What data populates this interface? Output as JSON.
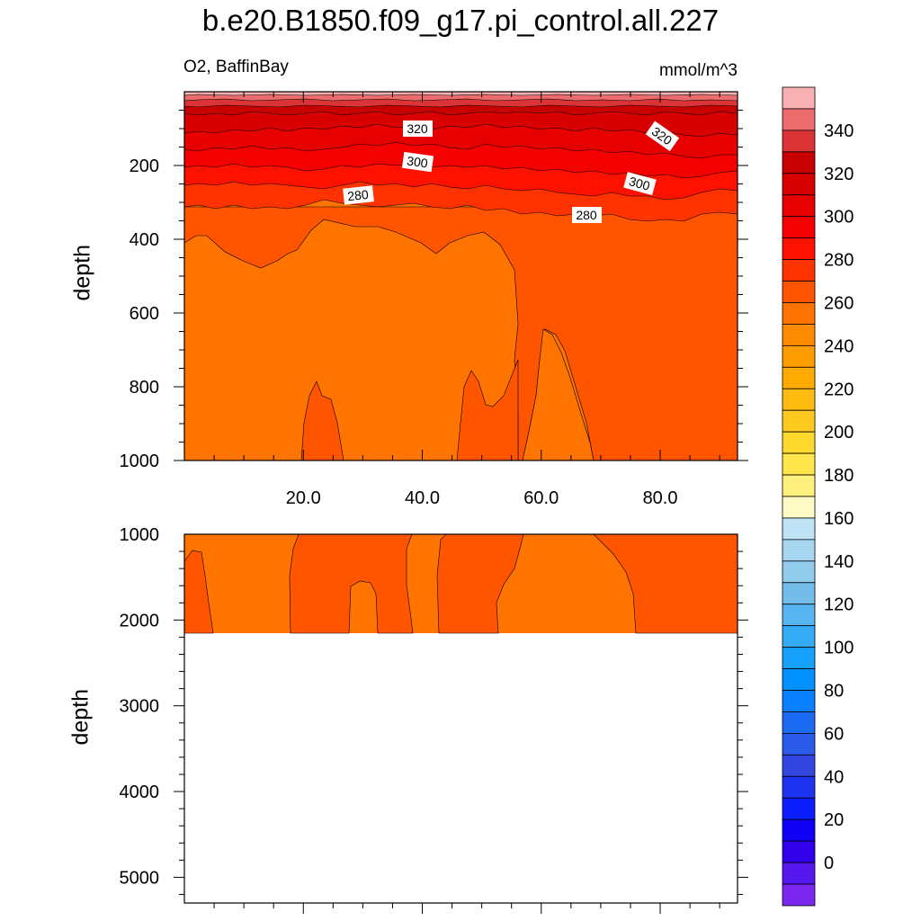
{
  "title": "b.e20.B1850.f09_g17.pi_control.all.227",
  "left_string": "O2, BaffinBay",
  "right_string": "mmol/m^3",
  "chart_data": [
    {
      "type": "contour",
      "panel": "upper",
      "ylabel": "depth",
      "y_reversed": true,
      "xlim": [
        0,
        93
      ],
      "ylim": [
        1000,
        0
      ],
      "x_ticks": [
        "20.0",
        "40.0",
        "60.0",
        "80.0"
      ],
      "y_ticks": [
        "200",
        "400",
        "600",
        "800",
        "1000"
      ],
      "contour_labels": [
        "320",
        "320",
        "300",
        "300",
        "280",
        "280"
      ],
      "approx_fields": [
        {
          "depth_range": [
            0,
            60
          ],
          "value_range": [
            330,
            360
          ]
        },
        {
          "depth_range": [
            60,
            230
          ],
          "value_range": [
            290,
            330
          ]
        },
        {
          "depth_range": [
            230,
            400
          ],
          "value_range": [
            270,
            290
          ]
        },
        {
          "depth_range": [
            400,
            1000
          ],
          "value_range": [
            260,
            280
          ]
        }
      ]
    },
    {
      "type": "contour",
      "panel": "lower",
      "ylabel": "depth",
      "y_reversed": true,
      "ylim": [
        5300,
        1000
      ],
      "y_ticks": [
        "1000",
        "2000",
        "3000",
        "4000",
        "5000"
      ],
      "data_depth_max": 2200,
      "approx_fields": [
        {
          "depth_range": [
            1000,
            2200
          ],
          "value_range": [
            260,
            280
          ]
        }
      ]
    }
  ],
  "colorbar": {
    "labels": [
      "340",
      "320",
      "300",
      "280",
      "260",
      "240",
      "220",
      "200",
      "180",
      "160",
      "140",
      "120",
      "100",
      "80",
      "60",
      "40",
      "20",
      "0"
    ],
    "colors": [
      "#F8B2B4",
      "#EC6C6E",
      "#DB3437",
      "#C90000",
      "#D80000",
      "#E60000",
      "#F50000",
      "#FF1100",
      "#FF3300",
      "#FF5500",
      "#FF7400",
      "#FF8C00",
      "#FF9C00",
      "#FFAA00",
      "#FFBB10",
      "#FFCA20",
      "#FFD92E",
      "#FFE64A",
      "#FFF07F",
      "#FFFBC4",
      "#BFE3F5",
      "#A6D6F0",
      "#91CBEC",
      "#74BDEB",
      "#56B5F0",
      "#35ABF6",
      "#14A0FB",
      "#0090FF",
      "#0A7FFF",
      "#1A6BF2",
      "#2B5AE8",
      "#3346DD",
      "#1F34F0",
      "#0A1EFF",
      "#1000F5",
      "#3300EE",
      "#5518EE",
      "#7A27EE"
    ]
  }
}
